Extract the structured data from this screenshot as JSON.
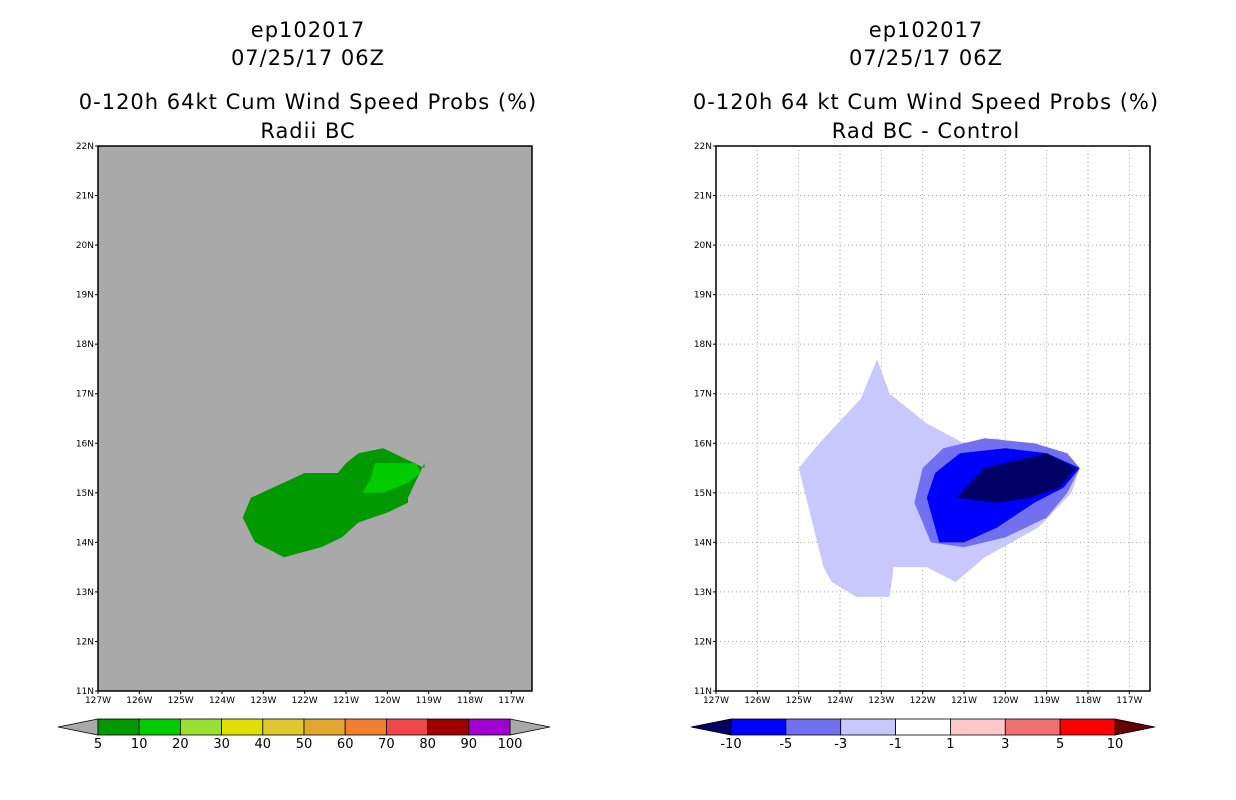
{
  "panels": [
    {
      "storm_id": "ep102017",
      "datetime": "07/25/17 06Z",
      "title": "0-120h 64kt Cum Wind Speed Probs (%)",
      "subtitle": "Radii BC"
    },
    {
      "storm_id": "ep102017",
      "datetime": "07/25/17 06Z",
      "title": "0-120h 64 kt Cum Wind Speed Probs (%)",
      "subtitle": "Rad BC - Control"
    }
  ],
  "chart_data": [
    {
      "type": "contour",
      "title": "0-120h 64kt Cum Wind Speed Probs (%)",
      "subtitle": "Radii BC",
      "x_ticks": [
        "127W",
        "126W",
        "125W",
        "124W",
        "123W",
        "122W",
        "121W",
        "120W",
        "119W",
        "118W",
        "117W"
      ],
      "y_ticks": [
        "11N",
        "12N",
        "13N",
        "14N",
        "15N",
        "16N",
        "17N",
        "18N",
        "19N",
        "20N",
        "21N",
        "22N"
      ],
      "xlim_lon": [
        -127,
        -116.5
      ],
      "ylim_lat": [
        11,
        22
      ],
      "grid": false,
      "background_color": "#a9a9a9",
      "colorbar": {
        "levels": [
          "5",
          "10",
          "20",
          "30",
          "40",
          "50",
          "60",
          "70",
          "80",
          "90",
          "100"
        ],
        "colors": [
          "#009900",
          "#00cc00",
          "#99e033",
          "#e0e000",
          "#e0c830",
          "#e0a830",
          "#f08030",
          "#f04848",
          "#a00000",
          "#a000d0"
        ],
        "extend_colors": [
          "#a9a9a9",
          "#a9a9a9"
        ]
      },
      "regions": [
        {
          "level": "5-10",
          "color": "#009900",
          "lon": [
            -120.7,
            -120.1,
            -119.1,
            -119.1,
            -119.5,
            -119.5,
            -120.0,
            -120.7,
            -121.1,
            -121.6,
            -122.5,
            -123.2,
            -123.5,
            -123.3,
            -122.0,
            -121.2,
            -121.0,
            -120.7
          ],
          "lat": [
            15.8,
            15.9,
            15.5,
            15.6,
            14.9,
            14.8,
            14.6,
            14.4,
            14.1,
            13.9,
            13.7,
            14.0,
            14.5,
            14.9,
            15.4,
            15.4,
            15.6,
            15.8
          ]
        },
        {
          "level": "10-20",
          "color": "#00cc00",
          "lon": [
            -120.3,
            -119.3,
            -119.2,
            -119.5,
            -120.1,
            -120.6,
            -120.4,
            -120.3
          ],
          "lat": [
            15.6,
            15.6,
            15.4,
            15.2,
            15.0,
            15.0,
            15.3,
            15.6
          ]
        }
      ]
    },
    {
      "type": "contour",
      "title": "0-120h 64 kt Cum Wind Speed Probs (%)",
      "subtitle": "Rad BC - Control",
      "x_ticks": [
        "127W",
        "126W",
        "125W",
        "124W",
        "123W",
        "122W",
        "121W",
        "120W",
        "119W",
        "118W",
        "117W"
      ],
      "y_ticks": [
        "11N",
        "12N",
        "13N",
        "14N",
        "15N",
        "16N",
        "17N",
        "18N",
        "19N",
        "20N",
        "21N",
        "22N"
      ],
      "xlim_lon": [
        -127,
        -116.5
      ],
      "ylim_lat": [
        11,
        22
      ],
      "grid": true,
      "background_color": "#ffffff",
      "colorbar": {
        "levels": [
          "-10",
          "-5",
          "-3",
          "-1",
          "1",
          "3",
          "5",
          "10"
        ],
        "colors": [
          "#0000ff",
          "#7070f0",
          "#c8c8ff",
          "#ffffff",
          "#ffc8c8",
          "#f07070",
          "#ff0000"
        ],
        "extend_colors": [
          "#000066",
          "#660000"
        ]
      },
      "regions": [
        {
          "level": "-3 to -1",
          "color": "#c8c8ff",
          "lon": [
            -123.5,
            -123.1,
            -122.8,
            -122.8,
            -121.9,
            -121.0,
            -120.2,
            -119.5,
            -118.9,
            -118.7,
            -118.2,
            -118.4,
            -119.2,
            -120.5,
            -121.2,
            -121.9,
            -122.7,
            -122.8,
            -123.6,
            -124.2,
            -124.4,
            -125.0,
            -124.5,
            -123.5
          ],
          "lat": [
            16.9,
            17.7,
            17.0,
            17.0,
            16.4,
            16.0,
            16.1,
            15.9,
            15.7,
            15.5,
            15.5,
            15.0,
            14.3,
            13.7,
            13.2,
            13.5,
            13.5,
            12.9,
            12.9,
            13.2,
            13.5,
            15.5,
            16.0,
            16.9
          ]
        },
        {
          "level": "-5 to -3",
          "color": "#7070f0",
          "lon": [
            -121.5,
            -120.5,
            -119.3,
            -118.5,
            -118.2,
            -118.5,
            -119.0,
            -120.0,
            -121.0,
            -121.8,
            -122.2,
            -122.0,
            -121.5
          ],
          "lat": [
            15.9,
            16.1,
            16.0,
            15.8,
            15.5,
            15.0,
            14.5,
            14.1,
            13.9,
            14.0,
            14.8,
            15.5,
            15.9
          ]
        },
        {
          "level": "-10 to -5",
          "color": "#0000ff",
          "lon": [
            -121.1,
            -120.0,
            -119.0,
            -118.2,
            -118.6,
            -119.3,
            -120.2,
            -121.0,
            -121.6,
            -121.9,
            -121.7,
            -121.1
          ],
          "lat": [
            15.8,
            15.9,
            15.8,
            15.5,
            15.1,
            14.8,
            14.3,
            14.0,
            14.0,
            14.9,
            15.4,
            15.8
          ]
        },
        {
          "level": "< -10",
          "color": "#000066",
          "lon": [
            -120.5,
            -119.0,
            -118.3,
            -118.7,
            -119.4,
            -120.2,
            -121.2,
            -120.5
          ],
          "lat": [
            15.5,
            15.8,
            15.5,
            15.1,
            14.9,
            14.8,
            14.9,
            15.5
          ]
        }
      ]
    }
  ]
}
